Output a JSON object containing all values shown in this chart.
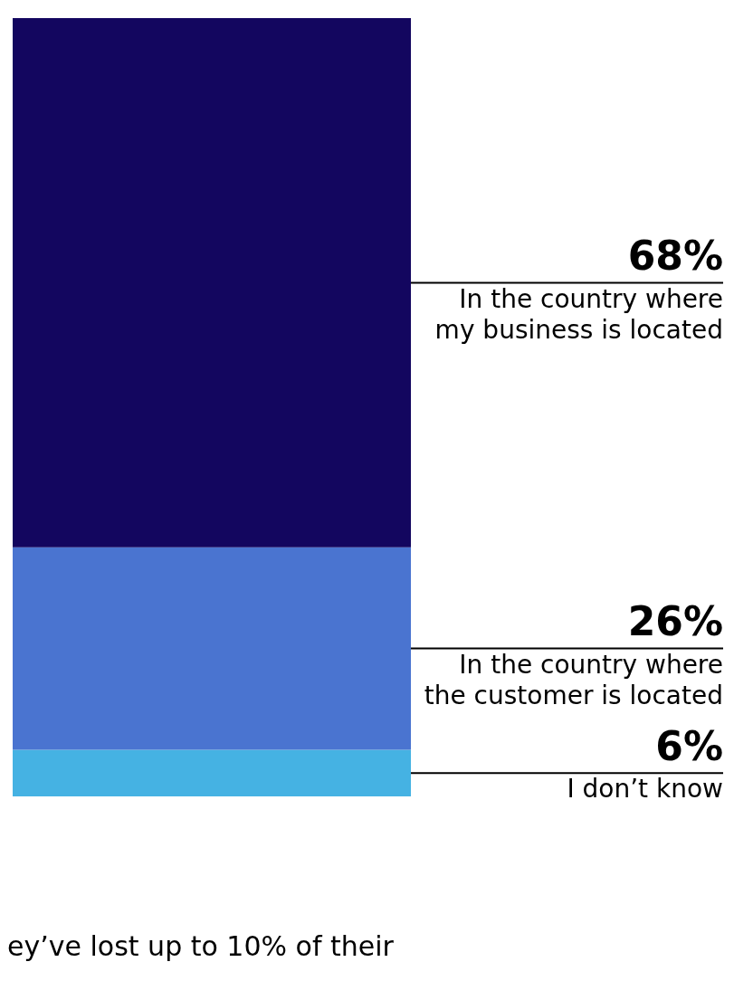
{
  "chart_data": {
    "type": "bar",
    "stacked": true,
    "categories": [
      null
    ],
    "series": [
      {
        "name": "I don’t know",
        "color": "#45b2e3",
        "values": [
          6
        ],
        "value_labels": [
          "6%"
        ]
      },
      {
        "name": "In the country where the customer is located",
        "color": "#4a74d0",
        "values": [
          26
        ],
        "value_labels": [
          "26%"
        ]
      },
      {
        "name": "In the country where my business is located",
        "color": "#13065f",
        "values": [
          68
        ],
        "value_labels": [
          "68%"
        ]
      }
    ],
    "legend": false,
    "tick_labels": false,
    "annotations": [
      "ey’ve lost up to 10% of their"
    ]
  }
}
